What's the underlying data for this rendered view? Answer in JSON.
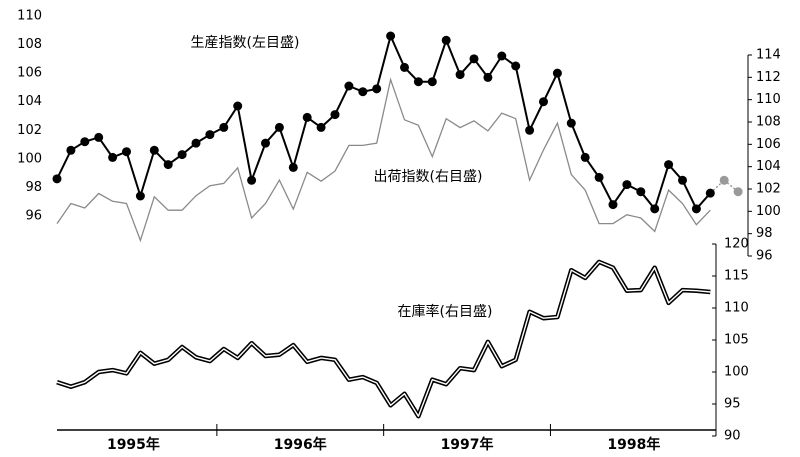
{
  "chart_data": {
    "type": "line",
    "years": [
      "1995年",
      "1996年",
      "1997年",
      "1998年"
    ],
    "ylim": [
      96,
      110
    ],
    "yticks": [
      96,
      98,
      100,
      102,
      104,
      106,
      108,
      110
    ],
    "y2lim": [
      96,
      114
    ],
    "y2ticks": [
      96,
      98,
      100,
      102,
      104,
      106,
      108,
      110,
      112,
      114
    ],
    "y3lim": [
      90,
      120
    ],
    "y3ticks": [
      90,
      95,
      100,
      105,
      110,
      115,
      120
    ],
    "series": [
      {
        "name": "生産指数(左目盛)",
        "axis": "y",
        "color": "#000000",
        "forecast_color": "#999999",
        "values": [
          98.6,
          100.6,
          101.2,
          101.5,
          100.1,
          100.5,
          97.4,
          100.6,
          99.6,
          100.3,
          101.1,
          101.7,
          102.2,
          103.7,
          98.5,
          101.1,
          102.2,
          99.4,
          102.9,
          102.2,
          103.1,
          105.1,
          104.7,
          104.9,
          108.6,
          106.4,
          105.4,
          105.4,
          108.3,
          105.9,
          107.0,
          105.7,
          107.2,
          106.5,
          102.0,
          104.0,
          106.0,
          102.5,
          100.1,
          98.7,
          96.8,
          98.2,
          97.7,
          96.5,
          99.6,
          98.5,
          96.5,
          97.6,
          null,
          null
        ],
        "forecast_values": [
          null,
          null,
          null,
          null,
          null,
          null,
          null,
          null,
          null,
          null,
          null,
          null,
          null,
          null,
          null,
          null,
          null,
          null,
          null,
          null,
          null,
          null,
          null,
          null,
          null,
          null,
          null,
          null,
          null,
          null,
          null,
          null,
          null,
          null,
          null,
          null,
          null,
          null,
          null,
          null,
          null,
          null,
          null,
          null,
          null,
          null,
          null,
          null,
          98.5,
          97.7
        ]
      },
      {
        "name": "出荷指数(右目盛)",
        "axis": "y2",
        "color": "#8a8a8a",
        "values": [
          98.9,
          100.7,
          100.3,
          101.6,
          100.9,
          100.7,
          97.4,
          101.3,
          100.1,
          100.1,
          101.4,
          102.3,
          102.5,
          103.9,
          99.4,
          100.7,
          102.8,
          100.2,
          103.5,
          102.7,
          103.6,
          105.9,
          105.9,
          106.1,
          111.8,
          108.2,
          107.7,
          104.9,
          108.3,
          107.5,
          108.1,
          107.2,
          108.8,
          108.3,
          102.8,
          105.5,
          107.9,
          103.3,
          101.9,
          98.9,
          98.9,
          99.7,
          99.4,
          98.2,
          101.9,
          100.7,
          98.8,
          100.1,
          null,
          null
        ]
      },
      {
        "name": "在庫率(右目盛)",
        "axis": "y3",
        "color": "#000000",
        "values": [
          98.4,
          97.7,
          98.4,
          100.0,
          100.3,
          99.8,
          103.0,
          101.3,
          101.9,
          103.9,
          102.3,
          101.7,
          103.6,
          102.2,
          104.5,
          102.5,
          102.7,
          104.2,
          101.6,
          102.2,
          101.9,
          98.8,
          99.2,
          98.3,
          94.8,
          96.6,
          93.1,
          98.8,
          98.1,
          100.6,
          100.3,
          104.7,
          100.9,
          101.9,
          109.4,
          108.4,
          108.6,
          115.9,
          114.7,
          117.2,
          116.3,
          112.7,
          112.8,
          116.3,
          110.8,
          112.8,
          112.7,
          112.5,
          null,
          null
        ]
      }
    ]
  }
}
